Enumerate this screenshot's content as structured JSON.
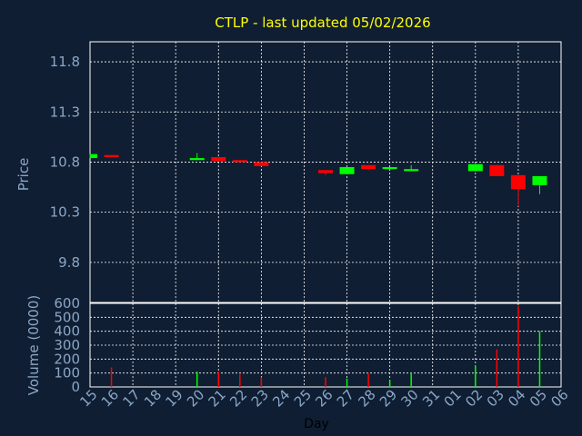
{
  "chart_data": [
    {
      "type": "candlestick",
      "title": "CTLP - last updated 05/02/2026",
      "ylabel": "Price",
      "xlabel": "Day",
      "ylim": [
        9.4,
        12.0
      ],
      "yticks": [
        "11.8",
        "11.3",
        "10.8",
        "10.3",
        "9.8"
      ],
      "yticks_values": [
        11.8,
        11.3,
        10.8,
        10.3,
        9.8
      ],
      "grid": true,
      "categories": [
        "15",
        "16",
        "17",
        "18",
        "19",
        "20",
        "21",
        "22",
        "23",
        "24",
        "25",
        "26",
        "27",
        "28",
        "29",
        "30",
        "31",
        "01",
        "02",
        "03",
        "04",
        "05",
        "06"
      ],
      "candles": [
        {
          "day": "15",
          "open": 10.84,
          "close": 10.88,
          "high": 10.88,
          "low": 10.84
        },
        {
          "day": "16",
          "open": 10.87,
          "close": 10.85,
          "high": 10.87,
          "low": 10.85
        },
        {
          "day": "20",
          "open": 10.82,
          "close": 10.84,
          "high": 10.89,
          "low": 10.82
        },
        {
          "day": "21",
          "open": 10.85,
          "close": 10.81,
          "high": 10.85,
          "low": 10.81
        },
        {
          "day": "22",
          "open": 10.82,
          "close": 10.8,
          "high": 10.82,
          "low": 10.8
        },
        {
          "day": "23",
          "open": 10.8,
          "close": 10.76,
          "high": 10.8,
          "low": 10.76
        },
        {
          "day": "26",
          "open": 10.72,
          "close": 10.69,
          "high": 10.72,
          "low": 10.67
        },
        {
          "day": "27",
          "open": 10.68,
          "close": 10.75,
          "high": 10.75,
          "low": 10.68
        },
        {
          "day": "28",
          "open": 10.77,
          "close": 10.73,
          "high": 10.77,
          "low": 10.72
        },
        {
          "day": "29",
          "open": 10.73,
          "close": 10.75,
          "high": 10.75,
          "low": 10.73
        },
        {
          "day": "30",
          "open": 10.71,
          "close": 10.73,
          "high": 10.77,
          "low": 10.71
        },
        {
          "day": "02",
          "open": 10.71,
          "close": 10.78,
          "high": 10.78,
          "low": 10.71
        },
        {
          "day": "03",
          "open": 10.77,
          "close": 10.66,
          "high": 10.77,
          "low": 10.66
        },
        {
          "day": "04",
          "open": 10.67,
          "close": 10.53,
          "high": 10.67,
          "low": 10.36
        },
        {
          "day": "05",
          "open": 10.57,
          "close": 10.66,
          "high": 10.66,
          "low": 10.48
        }
      ],
      "colors": {
        "up": "#00ff00",
        "down": "#ff0000"
      }
    },
    {
      "type": "bar",
      "ylabel": "Volume (0000)",
      "ylim": [
        0,
        600
      ],
      "yticks": [
        "600",
        "500",
        "400",
        "300",
        "200",
        "100",
        "0"
      ],
      "yticks_values": [
        600,
        500,
        400,
        300,
        200,
        100,
        0
      ],
      "grid": true,
      "categories": [
        "15",
        "16",
        "17",
        "18",
        "19",
        "20",
        "21",
        "22",
        "23",
        "24",
        "25",
        "26",
        "27",
        "28",
        "29",
        "30",
        "31",
        "01",
        "02",
        "03",
        "04",
        "05",
        "06"
      ],
      "bars": [
        {
          "day": "16",
          "value": 140,
          "dir": "down"
        },
        {
          "day": "20",
          "value": 110,
          "dir": "up"
        },
        {
          "day": "21",
          "value": 110,
          "dir": "down"
        },
        {
          "day": "22",
          "value": 90,
          "dir": "down"
        },
        {
          "day": "23",
          "value": 70,
          "dir": "down"
        },
        {
          "day": "26",
          "value": 70,
          "dir": "down"
        },
        {
          "day": "27",
          "value": 60,
          "dir": "up"
        },
        {
          "day": "28",
          "value": 100,
          "dir": "down"
        },
        {
          "day": "29",
          "value": 50,
          "dir": "up"
        },
        {
          "day": "30",
          "value": 100,
          "dir": "up"
        },
        {
          "day": "02",
          "value": 150,
          "dir": "up"
        },
        {
          "day": "03",
          "value": 270,
          "dir": "down"
        },
        {
          "day": "04",
          "value": 580,
          "dir": "down"
        },
        {
          "day": "05",
          "value": 400,
          "dir": "up"
        }
      ]
    }
  ],
  "theme": {
    "background": "#0f1e32",
    "grid": "#ffffff",
    "title_color": "#ffff00",
    "axis_text_color": "#8ba6c6"
  }
}
